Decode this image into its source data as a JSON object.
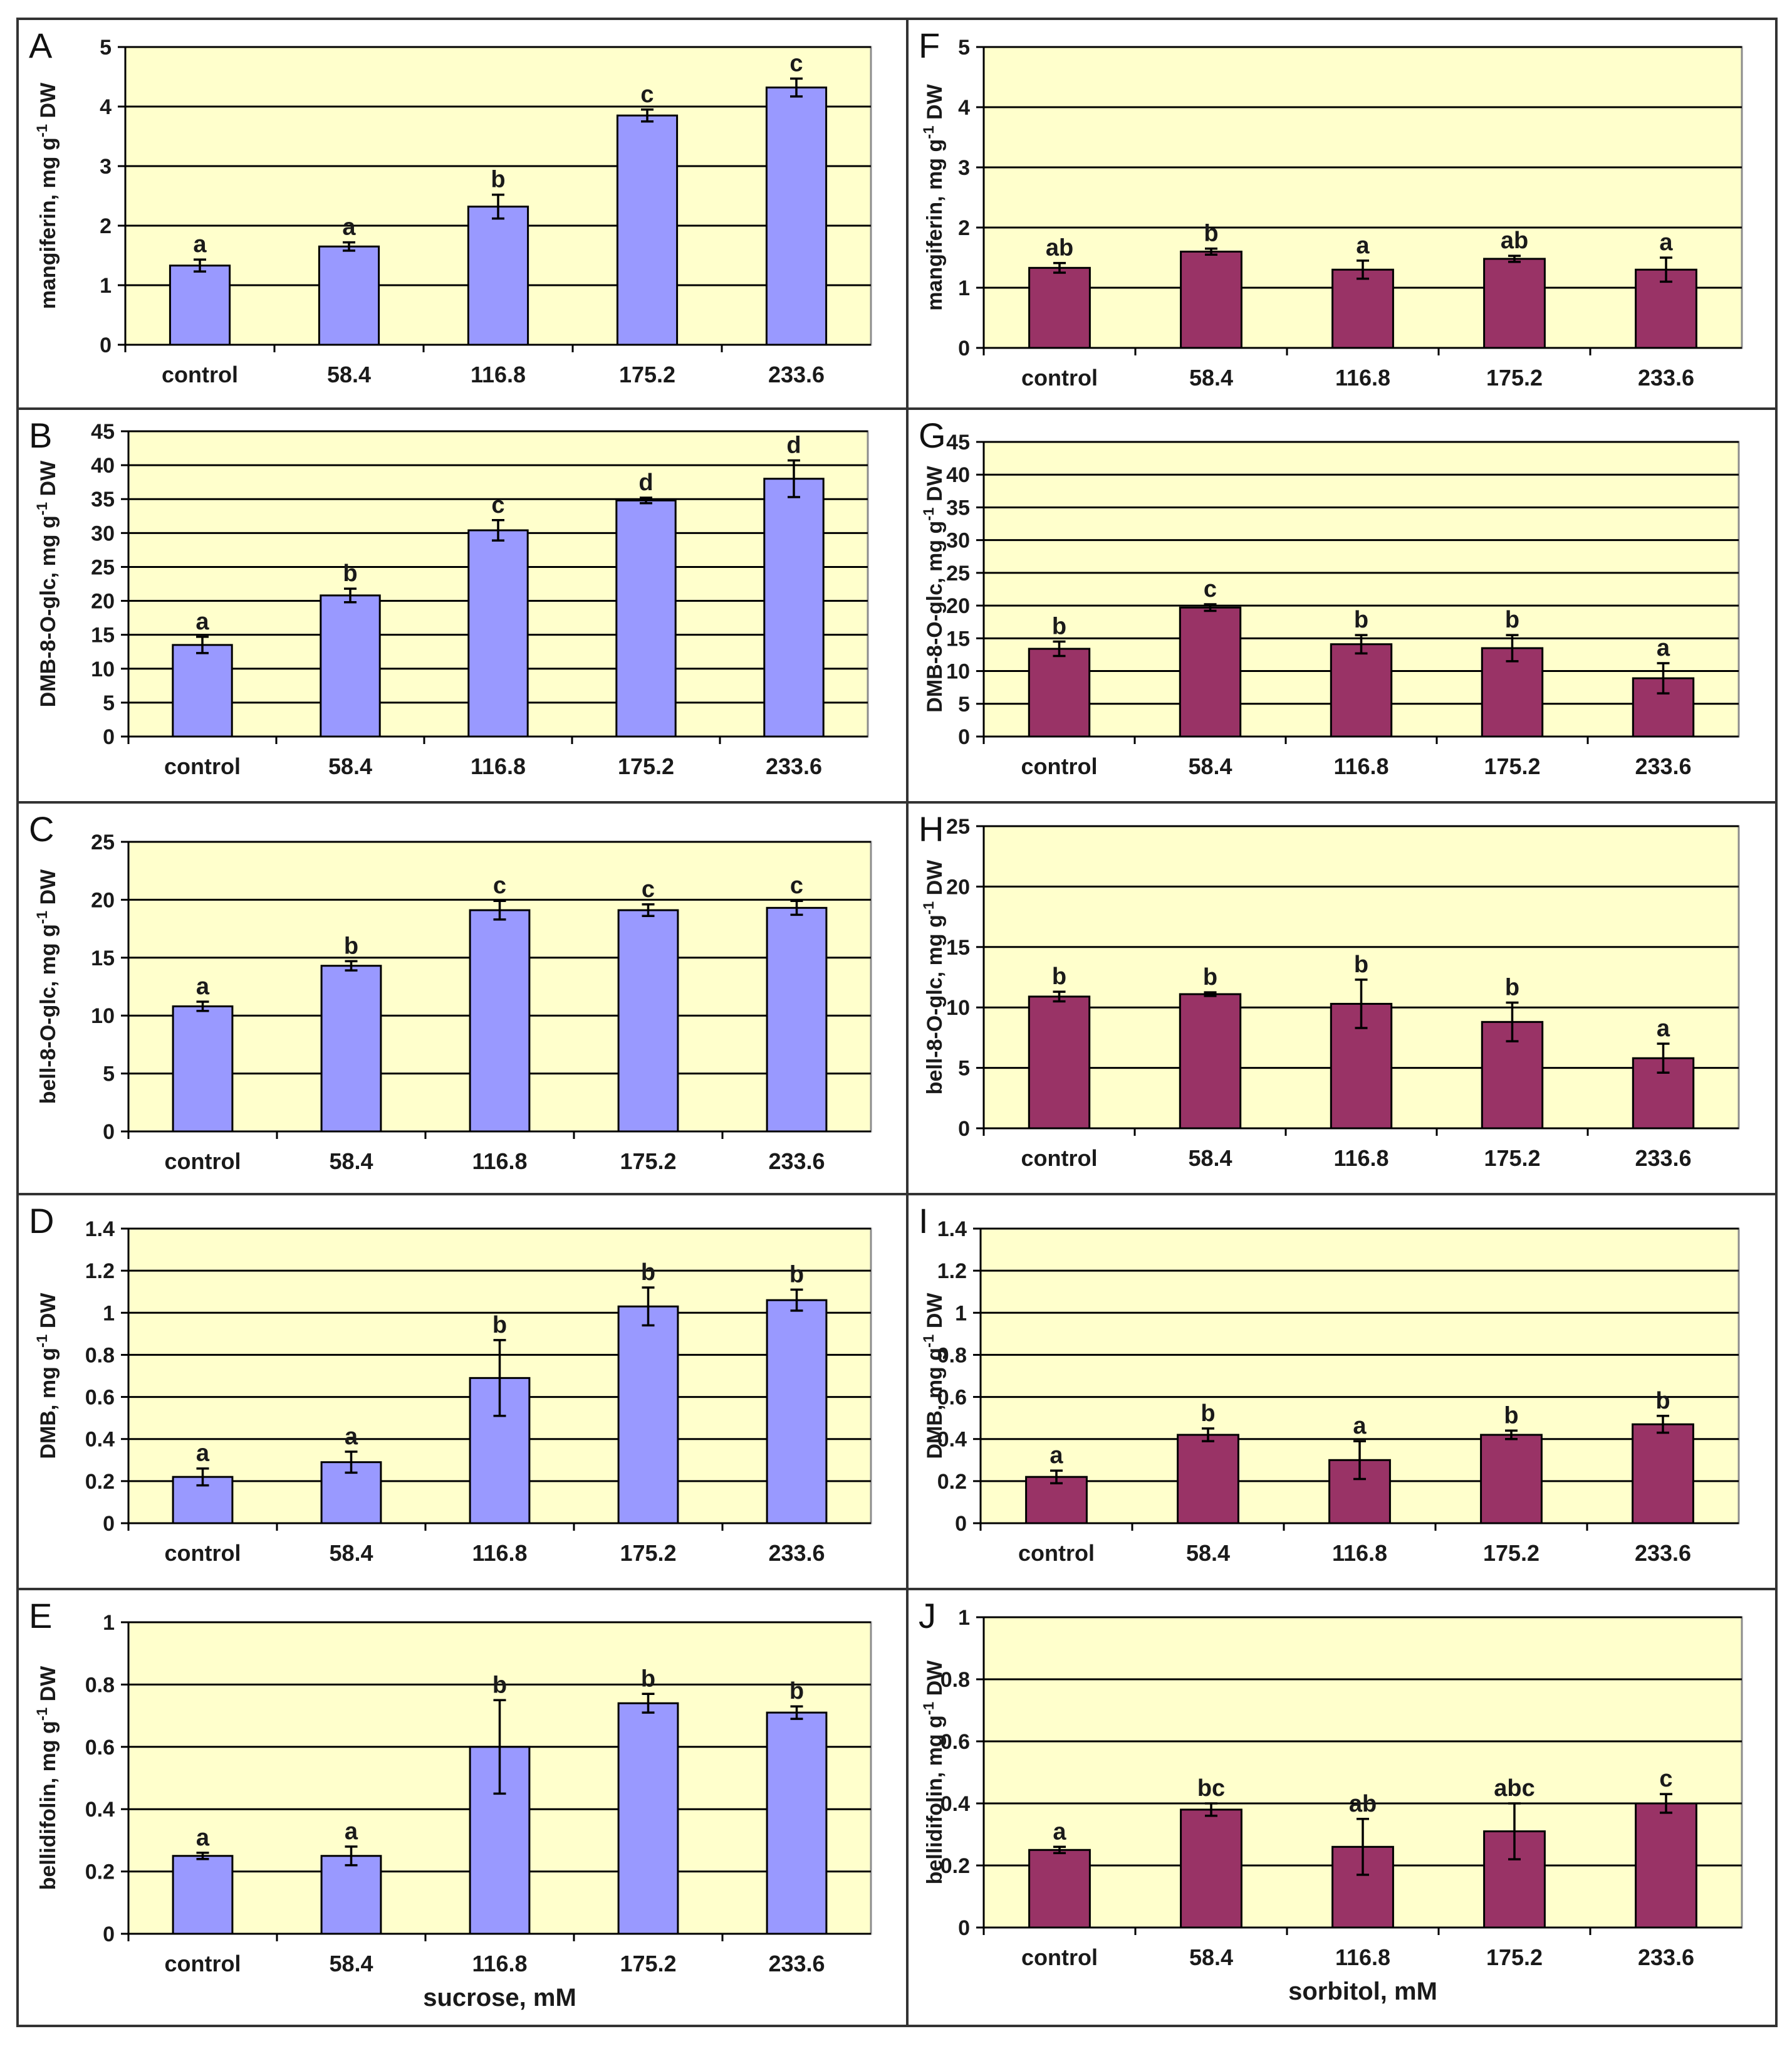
{
  "figure": {
    "categories": [
      "control",
      "58.4",
      "116.8",
      "175.2",
      "233.6"
    ],
    "colors": {
      "sucrose_bar": "#9999ff",
      "sorbitol_bar": "#993366",
      "plot_bg": "#ffffcc"
    }
  },
  "chart_data": [
    {
      "panel": "A",
      "type": "bar",
      "treatment": "sucrose",
      "ylabel": "mangiferin, mg g⁻¹ DW",
      "ylim": [
        0,
        5
      ],
      "ticks": [
        "0",
        "1",
        "2",
        "3",
        "4",
        "5"
      ],
      "categories": [
        "control",
        "58.4",
        "116.8",
        "175.2",
        "233.6"
      ],
      "values": [
        1.33,
        1.65,
        2.32,
        3.85,
        4.32
      ],
      "errors": [
        0.1,
        0.07,
        0.2,
        0.1,
        0.15
      ],
      "letters": [
        "a",
        "a",
        "b",
        "c",
        "c"
      ],
      "xlabel": ""
    },
    {
      "panel": "B",
      "type": "bar",
      "treatment": "sucrose",
      "ylabel": "DMB-8-O-glc, mg g⁻¹ DW",
      "ylim": [
        0,
        45
      ],
      "ticks": [
        "0",
        "5",
        "10",
        "15",
        "20",
        "25",
        "30",
        "35",
        "40",
        "45"
      ],
      "categories": [
        "control",
        "58.4",
        "116.8",
        "175.2",
        "233.6"
      ],
      "values": [
        13.5,
        20.8,
        30.4,
        34.8,
        38.0
      ],
      "errors": [
        1.2,
        1.0,
        1.5,
        0.4,
        2.7
      ],
      "letters": [
        "a",
        "b",
        "c",
        "d",
        "d"
      ],
      "xlabel": ""
    },
    {
      "panel": "C",
      "type": "bar",
      "treatment": "sucrose",
      "ylabel": "bell-8-O-glc, mg g⁻¹ DW",
      "ylim": [
        0,
        25
      ],
      "ticks": [
        "0",
        "5",
        "10",
        "15",
        "20",
        "25"
      ],
      "categories": [
        "control",
        "58.4",
        "116.8",
        "175.2",
        "233.6"
      ],
      "values": [
        10.8,
        14.3,
        19.1,
        19.1,
        19.3
      ],
      "errors": [
        0.4,
        0.4,
        0.8,
        0.5,
        0.6
      ],
      "letters": [
        "a",
        "b",
        "c",
        "c",
        "c"
      ],
      "xlabel": ""
    },
    {
      "panel": "D",
      "type": "bar",
      "treatment": "sucrose",
      "ylabel": "DMB, mg g⁻¹ DW",
      "ylim": [
        0,
        1.4
      ],
      "ticks": [
        "0",
        "0.2",
        "0.4",
        "0.6",
        "0.8",
        "1",
        "1.2",
        "1.4"
      ],
      "categories": [
        "control",
        "58.4",
        "116.8",
        "175.2",
        "233.6"
      ],
      "values": [
        0.22,
        0.29,
        0.69,
        1.03,
        1.06
      ],
      "errors": [
        0.04,
        0.05,
        0.18,
        0.09,
        0.05
      ],
      "letters": [
        "a",
        "a",
        "b",
        "b",
        "b"
      ],
      "xlabel": ""
    },
    {
      "panel": "E",
      "type": "bar",
      "treatment": "sucrose",
      "ylabel": "bellidifolin, mg g⁻¹ DW",
      "ylim": [
        0,
        1
      ],
      "ticks": [
        "0",
        "0.2",
        "0.4",
        "0.6",
        "0.8",
        "1"
      ],
      "categories": [
        "control",
        "58.4",
        "116.8",
        "175.2",
        "233.6"
      ],
      "values": [
        0.25,
        0.25,
        0.6,
        0.74,
        0.71
      ],
      "errors": [
        0.01,
        0.03,
        0.15,
        0.03,
        0.02
      ],
      "letters": [
        "a",
        "a",
        "b",
        "b",
        "b"
      ],
      "xlabel": "sucrose, mM"
    },
    {
      "panel": "F",
      "type": "bar",
      "treatment": "sorbitol",
      "ylabel": "mangiferin, mg g⁻¹ DW",
      "ylim": [
        0,
        5
      ],
      "ticks": [
        "0",
        "1",
        "2",
        "3",
        "4",
        "5"
      ],
      "categories": [
        "control",
        "58.4",
        "116.8",
        "175.2",
        "233.6"
      ],
      "values": [
        1.33,
        1.6,
        1.3,
        1.48,
        1.3
      ],
      "errors": [
        0.08,
        0.05,
        0.15,
        0.05,
        0.2
      ],
      "letters": [
        "ab",
        "b",
        "a",
        "ab",
        "a"
      ],
      "xlabel": ""
    },
    {
      "panel": "G",
      "type": "bar",
      "treatment": "sorbitol",
      "ylabel": "DMB-8-O-glc, mg g⁻¹ DW",
      "ylim": [
        0,
        45
      ],
      "ticks": [
        "0",
        "5",
        "10",
        "15",
        "20",
        "25",
        "30",
        "35",
        "40",
        "45"
      ],
      "categories": [
        "control",
        "58.4",
        "116.8",
        "175.2",
        "233.6"
      ],
      "values": [
        13.4,
        19.7,
        14.1,
        13.5,
        8.9
      ],
      "errors": [
        1.1,
        0.5,
        1.4,
        2.0,
        2.3
      ],
      "letters": [
        "b",
        "c",
        "b",
        "b",
        "a"
      ],
      "xlabel": ""
    },
    {
      "panel": "H",
      "type": "bar",
      "treatment": "sorbitol",
      "ylabel": "bell-8-O-glc, mg g⁻¹ DW",
      "ylim": [
        0,
        25
      ],
      "ticks": [
        "0",
        "5",
        "10",
        "15",
        "20",
        "25"
      ],
      "categories": [
        "control",
        "58.4",
        "116.8",
        "175.2",
        "233.6"
      ],
      "values": [
        10.9,
        11.1,
        10.3,
        8.8,
        5.8
      ],
      "errors": [
        0.4,
        0.15,
        2.0,
        1.6,
        1.2
      ],
      "letters": [
        "b",
        "b",
        "b",
        "b",
        "a"
      ],
      "xlabel": ""
    },
    {
      "panel": "I",
      "type": "bar",
      "treatment": "sorbitol",
      "ylabel": "DMB, mg g⁻¹ DW",
      "ylim": [
        0,
        1.4
      ],
      "ticks": [
        "0",
        "0.2",
        "0.4",
        "0.6",
        "0.8",
        "1",
        "1.2",
        "1.4"
      ],
      "categories": [
        "control",
        "58.4",
        "116.8",
        "175.2",
        "233.6"
      ],
      "values": [
        0.22,
        0.42,
        0.3,
        0.42,
        0.47
      ],
      "errors": [
        0.03,
        0.03,
        0.09,
        0.02,
        0.04
      ],
      "letters": [
        "a",
        "b",
        "a",
        "b",
        "b"
      ],
      "xlabel": ""
    },
    {
      "panel": "J",
      "type": "bar",
      "treatment": "sorbitol",
      "ylabel": "bellidifolin, mg g⁻¹ DW",
      "ylim": [
        0,
        1
      ],
      "ticks": [
        "0",
        "0.2",
        "0.4",
        "0.6",
        "0.8",
        "1"
      ],
      "categories": [
        "control",
        "58.4",
        "116.8",
        "175.2",
        "233.6"
      ],
      "values": [
        0.25,
        0.38,
        0.26,
        0.31,
        0.4
      ],
      "errors": [
        0.01,
        0.02,
        0.09,
        0.09,
        0.03
      ],
      "letters": [
        "a",
        "bc",
        "ab",
        "abc",
        "c"
      ],
      "xlabel": "sorbitol, mM"
    }
  ]
}
